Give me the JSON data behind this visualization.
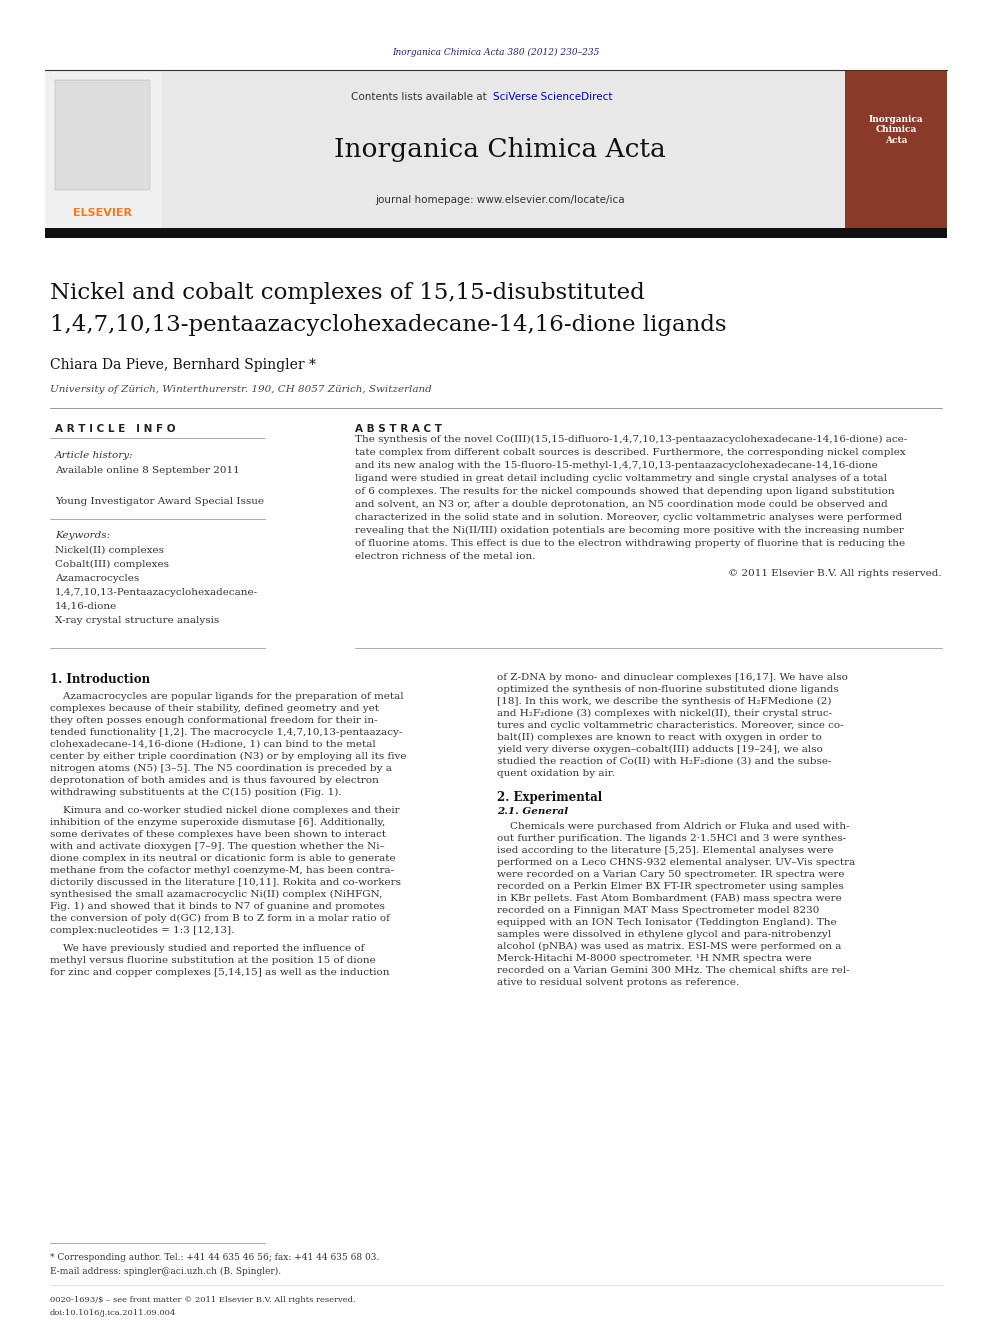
{
  "page_width": 9.92,
  "page_height": 13.23,
  "background_color": "#ffffff",
  "elsevier_orange": "#F47920",
  "journal_title_header": "Inorganica Chimica Acta 380 (2012) 230–235",
  "journal_title_header_color": "#1a237e",
  "sciverse_color": "#0000cc",
  "journal_name": "Inorganica Chimica Acta",
  "header_bg": "#e8e8e8",
  "article_title_line1": "Nickel and cobalt complexes of 15,15-disubstituted",
  "article_title_line2": "1,4,7,10,13-pentaazacyclohexadecane-14,16-dione ligands",
  "authors": "Chiara Da Pieve, Bernhard Spingler *",
  "affiliation": "University of Zürich, Winterthurerstr. 190, CH 8057 Zürich, Switzerland",
  "article_info_title": "A R T I C L E   I N F O",
  "abstract_title": "A B S T R A C T",
  "article_history_label": "Article history:",
  "available_online": "Available online 8 September 2011",
  "young_investigator": "Young Investigator Award Special Issue",
  "keywords_label": "Keywords:",
  "keywords": [
    "Nickel(II) complexes",
    "Cobalt(III) complexes",
    "Azamacrocycles",
    "1,4,7,10,13-Pentaazacyclohexadecane-",
    "14,16-dione",
    "X-ray crystal structure analysis"
  ],
  "copyright_text": "© 2011 Elsevier B.V. All rights reserved.",
  "section1_title": "1. Introduction",
  "section2_title": "2. Experimental",
  "section21_title": "2.1. General",
  "footnote_text": "* Corresponding author. Tel.: +41 44 635 46 56; fax: +41 44 635 68 03.",
  "email_text": "E-mail address: spingler@aci.uzh.ch (B. Spingler).",
  "issn_text": "0020-1693/$ – see front matter © 2011 Elsevier B.V. All rights reserved.",
  "doi_text": "doi:10.1016/j.ica.2011.09.004",
  "abstract_lines": [
    "The synthesis of the novel Co(III)(15,15-difluoro-1,4,7,10,13-pentaazacyclohexadecane-14,16-dione) ace-",
    "tate complex from different cobalt sources is described. Furthermore, the corresponding nickel complex",
    "and its new analog with the 15-fluoro-15-methyl-1,4,7,10,13-pentaazacyclohexadecane-14,16-dione",
    "ligand were studied in great detail including cyclic voltammetry and single crystal analyses of a total",
    "of 6 complexes. The results for the nickel compounds showed that depending upon ligand substitution",
    "and solvent, an N3 or, after a double deprotonation, an N5 coordination mode could be observed and",
    "characterized in the solid state and in solution. Moreover, cyclic voltammetric analyses were performed",
    "revealing that the Ni(II/III) oxidation potentials are becoming more positive with the increasing number",
    "of fluorine atoms. This effect is due to the electron withdrawing property of fluorine that is reducing the",
    "electron richness of the metal ion."
  ],
  "intro_left_lines": [
    "    Azamacrocycles are popular ligands for the preparation of metal",
    "complexes because of their stability, defined geometry and yet",
    "they often posses enough conformational freedom for their in-",
    "tended functionality [1,2]. The macrocycle 1,4,7,10,13-pentaazacy-",
    "clohexadecane-14,16-dione (H₂dione, 1) can bind to the metal",
    "center by either triple coordination (N3) or by employing all its five",
    "nitrogen atoms (N5) [3–5]. The N5 coordination is preceded by a",
    "deprotonation of both amides and is thus favoured by electron",
    "withdrawing substituents at the C(15) position (Fig. 1).",
    "",
    "    Kimura and co-worker studied nickel dione complexes and their",
    "inhibition of the enzyme superoxide dismutase [6]. Additionally,",
    "some derivates of these complexes have been shown to interact",
    "with and activate dioxygen [7–9]. The question whether the Ni–",
    "dione complex in its neutral or dicationic form is able to generate",
    "methane from the cofactor methyl coenzyme-M, has been contra-",
    "dictorily discussed in the literature [10,11]. Rokita and co-workers",
    "synthesised the small azamacrocyclic Ni(II) complex (NiHFGN,",
    "Fig. 1) and showed that it binds to N7 of guanine and promotes",
    "the conversion of poly d(GC) from B to Z form in a molar ratio of",
    "complex:nucleotides = 1:3 [12,13].",
    "",
    "    We have previously studied and reported the influence of",
    "methyl versus fluorine substitution at the position 15 of dione",
    "for zinc and copper complexes [5,14,15] as well as the induction"
  ],
  "intro_right_lines": [
    "of Z-DNA by mono- and dinuclear complexes [16,17]. We have also",
    "optimized the synthesis of non-fluorine substituted dione ligands",
    "[18]. In this work, we describe the synthesis of H₂FMedione (2)",
    "and H₂F₂dione (3) complexes with nickel(II), their crystal struc-",
    "tures and cyclic voltammetric characteristics. Moreover, since co-",
    "balt(II) complexes are known to react with oxygen in order to",
    "yield very diverse oxygen–cobalt(III) adducts [19–24], we also",
    "studied the reaction of Co(II) with H₂F₂dione (3) and the subse-",
    "quent oxidation by air."
  ],
  "exp_lines": [
    "    Chemicals were purchased from Aldrich or Fluka and used with-",
    "out further purification. The ligands 2·1.5HCl and 3 were synthes-",
    "ised according to the literature [5,25]. Elemental analyses were",
    "performed on a Leco CHNS-932 elemental analyser. UV–Vis spectra",
    "were recorded on a Varian Cary 50 spectrometer. IR spectra were",
    "recorded on a Perkin Elmer BX FT-IR spectrometer using samples",
    "in KBr pellets. Fast Atom Bombardment (FAB) mass spectra were",
    "recorded on a Finnigan MAT Mass Spectrometer model 8230",
    "equipped with an ION Tech Ionisator (Teddington England). The",
    "samples were dissolved in ethylene glycol and para-nitrobenzyl",
    "alcohol (pNBA) was used as matrix. ESI-MS were performed on a",
    "Merck-Hitachi M-8000 spectrometer. ¹H NMR spectra were",
    "recorded on a Varian Gemini 300 MHz. The chemical shifts are rel-",
    "ative to residual solvent protons as reference."
  ]
}
